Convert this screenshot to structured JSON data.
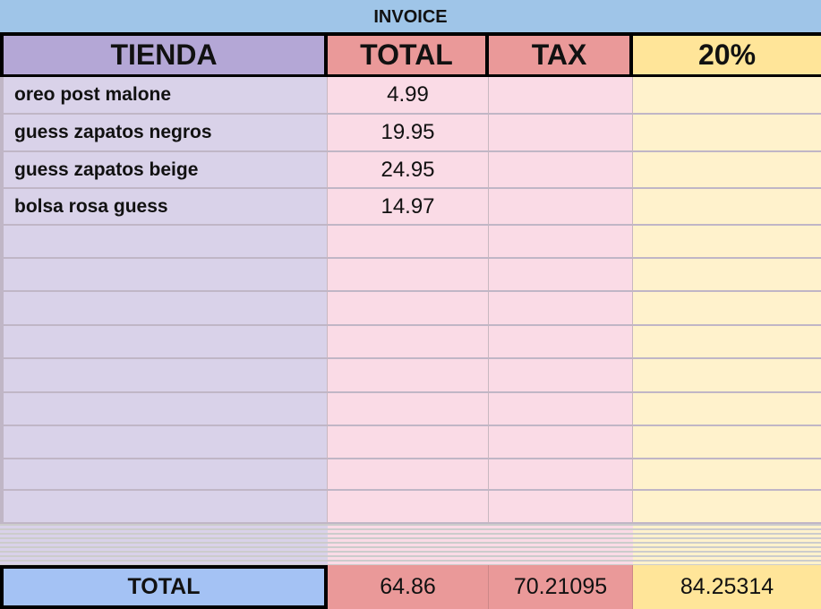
{
  "title": "INVOICE",
  "headers": {
    "store": "TIENDA",
    "total": "TOTAL",
    "tax": "TAX",
    "pct": "20%"
  },
  "rows": [
    {
      "store": "oreo post malone",
      "total": "4.99",
      "tax": "",
      "pct": ""
    },
    {
      "store": "guess zapatos negros",
      "total": "19.95",
      "tax": "",
      "pct": ""
    },
    {
      "store": "guess zapatos beige",
      "total": "24.95",
      "tax": "",
      "pct": ""
    },
    {
      "store": "bolsa rosa guess",
      "total": "14.97",
      "tax": "",
      "pct": ""
    },
    {
      "store": "",
      "total": "",
      "tax": "",
      "pct": ""
    },
    {
      "store": "",
      "total": "",
      "tax": "",
      "pct": ""
    },
    {
      "store": "",
      "total": "",
      "tax": "",
      "pct": ""
    },
    {
      "store": "",
      "total": "",
      "tax": "",
      "pct": ""
    },
    {
      "store": "",
      "total": "",
      "tax": "",
      "pct": ""
    },
    {
      "store": "",
      "total": "",
      "tax": "",
      "pct": ""
    },
    {
      "store": "",
      "total": "",
      "tax": "",
      "pct": ""
    },
    {
      "store": "",
      "total": "",
      "tax": "",
      "pct": ""
    },
    {
      "store": "",
      "total": "",
      "tax": "",
      "pct": ""
    }
  ],
  "totals": {
    "label": "TOTAL",
    "total": "64.86",
    "tax": "70.21095",
    "pct": "84.25314"
  }
}
